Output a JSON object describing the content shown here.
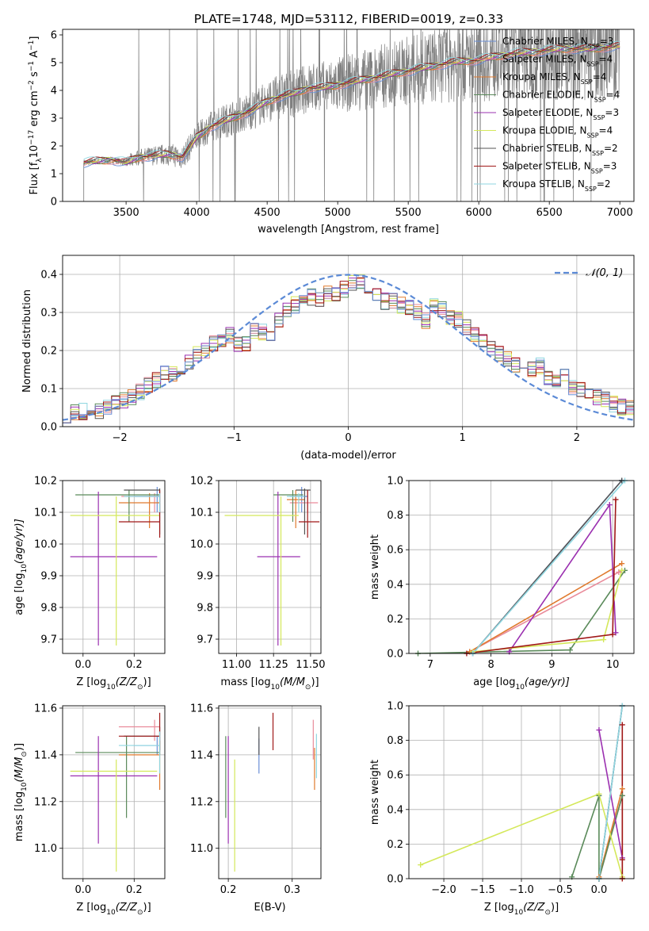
{
  "title": "PLATE=1748, MJD=53112, FIBERID=0019, z=0.33",
  "series_styles": [
    {
      "name": "Chabrier MILES",
      "sub": "SSP",
      "n": "3",
      "color": "#6a8fd6"
    },
    {
      "name": "Salpeter MILES",
      "sub": "SSP",
      "n": "4",
      "color": "#e98b9a"
    },
    {
      "name": "Kroupa MILES",
      "sub": "SSP",
      "n": "4",
      "color": "#e07a2e"
    },
    {
      "name": "Chabrier ELODIE",
      "sub": "SSP",
      "n": "4",
      "color": "#5a8a5a"
    },
    {
      "name": "Salpeter ELODIE",
      "sub": "SSP",
      "n": "3",
      "color": "#9b30b0"
    },
    {
      "name": "Kroupa ELODIE",
      "sub": "SSP",
      "n": "4",
      "color": "#d4e85a"
    },
    {
      "name": "Chabrier STELIB",
      "sub": "SSP",
      "n": "2",
      "color": "#555555"
    },
    {
      "name": "Salpeter STELIB",
      "sub": "SSP",
      "n": "3",
      "color": "#a01818"
    },
    {
      "name": "Kroupa STELIB",
      "sub": "SSP",
      "n": "2",
      "color": "#8fd6e0"
    }
  ],
  "chart_data": [
    {
      "id": "spectrum",
      "type": "line",
      "xlabel": "wavelength [Angstrom, rest frame]",
      "ylabel_main": "Flux [f",
      "ylabel_sub": "λ",
      "ylabel_rest": "10",
      "ylabel_exp": "−17",
      "ylabel_units": "erg cm",
      "xlim": [
        3050,
        7100
      ],
      "ylim": [
        0,
        6.2
      ],
      "xticks": [
        "3500",
        "4000",
        "4500",
        "5000",
        "5500",
        "6000",
        "6500",
        "7000"
      ],
      "xtick_values": [
        3500,
        4000,
        4500,
        5000,
        5500,
        6000,
        6500,
        7000
      ],
      "yticks": [
        "0",
        "1",
        "2",
        "3",
        "4",
        "5",
        "6"
      ],
      "ytick_values": [
        0,
        1,
        2,
        3,
        4,
        5,
        6
      ],
      "data_range": [
        3200,
        7000
      ],
      "continuum": {
        "x": [
          3200,
          3300,
          3400,
          3500,
          3600,
          3700,
          3800,
          3900,
          4000,
          4100,
          4200,
          4300,
          4400,
          4500,
          4600,
          4700,
          4800,
          4900,
          5000,
          5200,
          5400,
          5600,
          5800,
          6000,
          6200,
          6400,
          6600,
          6800,
          7000
        ],
        "y": [
          1.4,
          1.45,
          1.5,
          1.4,
          1.6,
          1.65,
          1.7,
          1.6,
          2.3,
          2.7,
          2.9,
          3.1,
          3.3,
          3.6,
          3.8,
          3.9,
          4.1,
          4.1,
          4.2,
          4.4,
          4.6,
          4.8,
          5.0,
          5.1,
          5.3,
          5.4,
          5.5,
          5.5,
          5.6
        ]
      },
      "legend_position": "upper right"
    },
    {
      "id": "residuals",
      "type": "step-histogram",
      "xlabel": "(data-model)/error",
      "ylabel": "Normed distribution",
      "xlim": [
        -2.5,
        2.5
      ],
      "ylim": [
        0,
        0.45
      ],
      "xticks": [
        "−2",
        "−1",
        "0",
        "1",
        "2"
      ],
      "xtick_values": [
        -2,
        -1,
        0,
        1,
        2
      ],
      "yticks": [
        "0.0",
        "0.1",
        "0.2",
        "0.3",
        "0.4"
      ],
      "ytick_values": [
        0,
        0.1,
        0.2,
        0.3,
        0.4
      ],
      "bin_width": 0.1,
      "base_heights": [
        0.03,
        0.04,
        0.04,
        0.05,
        0.04,
        0.05,
        0.06,
        0.07,
        0.08,
        0.09,
        0.11,
        0.12,
        0.14,
        0.14,
        0.15,
        0.17,
        0.19,
        0.2,
        0.22,
        0.23,
        0.24,
        0.22,
        0.22,
        0.25,
        0.25,
        0.24,
        0.28,
        0.31,
        0.32,
        0.33,
        0.34,
        0.33,
        0.35,
        0.35,
        0.36,
        0.38,
        0.38,
        0.36,
        0.35,
        0.33,
        0.33,
        0.32,
        0.31,
        0.3,
        0.28,
        0.32,
        0.31,
        0.29,
        0.28,
        0.26,
        0.24,
        0.22,
        0.21,
        0.19,
        0.18,
        0.16,
        0.17,
        0.15,
        0.16,
        0.13,
        0.12,
        0.13,
        0.1,
        0.1,
        0.09,
        0.08,
        0.07,
        0.06,
        0.05,
        0.05
      ],
      "hist_start": -2.5,
      "gaussian_label": "𝒩(0, 1)",
      "gaussian_color": "#5b8ad6"
    },
    {
      "id": "age-vs-Z",
      "type": "errorbar",
      "xlabel": "Z [log",
      "xlabel_sub": "10",
      "xlabel_rest": "(Z/Z",
      "ylabel": "age  [log",
      "ylabel_sub": "10",
      "ylabel_rest": "(age/yr)]",
      "xlim": [
        -0.08,
        0.32
      ],
      "ylim": [
        9.655,
        10.2
      ],
      "xticks": [
        "0.0",
        "0.2"
      ],
      "xtick_values": [
        0,
        0.2
      ],
      "yticks": [
        "9.7",
        "9.8",
        "9.9",
        "10.0",
        "10.1",
        "10.2"
      ],
      "ytick_values": [
        9.7,
        9.8,
        9.9,
        10.0,
        10.1,
        10.2
      ],
      "points": [
        {
          "series": 0,
          "x": 0.29,
          "xlo": 0.2,
          "xhi": 0.3,
          "y": 10.15,
          "ylo": 10.1,
          "yhi": 10.18
        },
        {
          "series": 1,
          "x": 0.28,
          "xlo": 0.15,
          "xhi": 0.3,
          "y": 10.15,
          "ylo": 10.1,
          "yhi": 10.16
        },
        {
          "series": 2,
          "x": 0.26,
          "xlo": 0.14,
          "xhi": 0.3,
          "y": 10.13,
          "ylo": 10.05,
          "yhi": 10.16
        },
        {
          "series": 3,
          "x": 0.18,
          "xlo": -0.03,
          "xhi": 0.3,
          "y": 10.155,
          "ylo": 10.07,
          "yhi": 10.17
        },
        {
          "series": 4,
          "x": 0.06,
          "xlo": -0.05,
          "xhi": 0.29,
          "y": 9.96,
          "ylo": 9.68,
          "yhi": 10.165
        },
        {
          "series": 5,
          "x": 0.13,
          "xlo": -0.05,
          "xhi": 0.3,
          "y": 10.09,
          "ylo": 9.68,
          "yhi": 10.15
        },
        {
          "series": 6,
          "x": 0.3,
          "xlo": 0.16,
          "xhi": 0.3,
          "y": 10.17,
          "ylo": 10.03,
          "yhi": 10.175
        },
        {
          "series": 7,
          "x": 0.3,
          "xlo": 0.14,
          "xhi": 0.3,
          "y": 10.07,
          "ylo": 10.02,
          "yhi": 10.17
        },
        {
          "series": 8,
          "x": 0.3,
          "xlo": 0.16,
          "xhi": 0.3,
          "y": 10.15,
          "ylo": 10.1,
          "yhi": 10.16
        }
      ]
    },
    {
      "id": "age-vs-mass",
      "type": "errorbar",
      "xlabel": "mass [log",
      "xlabel_sub": "10",
      "xlabel_rest": "(M/M",
      "xlim": [
        10.88,
        11.57
      ],
      "ylim": [
        9.655,
        10.2
      ],
      "xticks": [
        "11.00",
        "11.25",
        "11.50"
      ],
      "xtick_values": [
        11.0,
        11.25,
        11.5
      ],
      "yticks": [
        "9.7",
        "9.8",
        "9.9",
        "10.0",
        "10.1",
        "10.2"
      ],
      "ytick_values": [
        9.7,
        9.8,
        9.9,
        10.0,
        10.1,
        10.2
      ],
      "points": [
        {
          "series": 0,
          "x": 11.44,
          "xlo": 11.36,
          "xhi": 11.48,
          "y": 10.15,
          "ylo": 10.1,
          "yhi": 10.18
        },
        {
          "series": 1,
          "x": 11.48,
          "xlo": 11.36,
          "xhi": 11.55,
          "y": 10.13,
          "ylo": 10.1,
          "yhi": 10.17
        },
        {
          "series": 2,
          "x": 11.4,
          "xlo": 11.34,
          "xhi": 11.46,
          "y": 10.14,
          "ylo": 10.05,
          "yhi": 10.17
        },
        {
          "series": 3,
          "x": 11.38,
          "xlo": 11.25,
          "xhi": 11.45,
          "y": 10.155,
          "ylo": 10.07,
          "yhi": 10.17
        },
        {
          "series": 4,
          "x": 11.28,
          "xlo": 11.14,
          "xhi": 11.43,
          "y": 9.96,
          "ylo": 9.68,
          "yhi": 10.165
        },
        {
          "series": 5,
          "x": 11.3,
          "xlo": 10.92,
          "xhi": 11.42,
          "y": 10.09,
          "ylo": 9.68,
          "yhi": 10.15
        },
        {
          "series": 6,
          "x": 11.46,
          "xlo": 11.4,
          "xhi": 11.5,
          "y": 10.17,
          "ylo": 10.03,
          "yhi": 10.175
        },
        {
          "series": 7,
          "x": 11.48,
          "xlo": 11.42,
          "xhi": 11.56,
          "y": 10.07,
          "ylo": 10.02,
          "yhi": 10.17
        },
        {
          "series": 8,
          "x": 11.42,
          "xlo": 11.34,
          "xhi": 11.46,
          "y": 10.15,
          "ylo": 10.1,
          "yhi": 10.16
        }
      ]
    },
    {
      "id": "weight-vs-age",
      "type": "line",
      "xlabel": "age  [log",
      "xlabel_sub": "10",
      "xlabel_rest": "(age/yr)]",
      "ylabel": "mass weight",
      "xlim": [
        6.65,
        10.35
      ],
      "ylim": [
        0,
        1
      ],
      "xticks": [
        "7",
        "8",
        "9",
        "10"
      ],
      "xtick_values": [
        7,
        8,
        9,
        10
      ],
      "yticks": [
        "0.0",
        "0.2",
        "0.4",
        "0.6",
        "0.8",
        "1.0"
      ],
      "ytick_values": [
        0,
        0.2,
        0.4,
        0.6,
        0.8,
        1.0
      ],
      "series": [
        {
          "series": 0,
          "x": [
            7.7,
            10.15
          ],
          "y": [
            0.0,
            1.0
          ]
        },
        {
          "series": 1,
          "x": [
            7.65,
            10.1,
            10.15
          ],
          "y": [
            0.01,
            0.47,
            0.48
          ]
        },
        {
          "series": 2,
          "x": [
            7.65,
            10.15
          ],
          "y": [
            0.01,
            0.52
          ]
        },
        {
          "series": 3,
          "x": [
            6.8,
            9.3,
            10.2
          ],
          "y": [
            0.0,
            0.02,
            0.48
          ]
        },
        {
          "series": 4,
          "x": [
            8.3,
            9.95,
            10.05
          ],
          "y": [
            0.01,
            0.86,
            0.12
          ]
        },
        {
          "series": 5,
          "x": [
            7.7,
            9.85,
            10.15
          ],
          "y": [
            0.01,
            0.08,
            0.48
          ]
        },
        {
          "series": 6,
          "x": [
            7.7,
            10.15
          ],
          "y": [
            0.0,
            1.0
          ]
        },
        {
          "series": 7,
          "x": [
            7.6,
            10.0,
            10.05
          ],
          "y": [
            0.0,
            0.11,
            0.89
          ]
        },
        {
          "series": 8,
          "x": [
            7.7,
            10.2
          ],
          "y": [
            0.0,
            1.0
          ]
        }
      ]
    },
    {
      "id": "mass-vs-Z",
      "type": "errorbar",
      "xlabel": "Z [log",
      "xlabel_sub": "10",
      "xlabel_rest": "(Z/Z",
      "ylabel": "mass [log",
      "ylabel_sub": "10",
      "ylabel_rest": "(M/M",
      "xlim": [
        -0.08,
        0.32
      ],
      "ylim": [
        10.87,
        11.61
      ],
      "xticks": [
        "0.0",
        "0.2"
      ],
      "xtick_values": [
        0,
        0.2
      ],
      "yticks": [
        "11.0",
        "11.2",
        "11.4",
        "11.6"
      ],
      "ytick_values": [
        11.0,
        11.2,
        11.4,
        11.6
      ],
      "points": [
        {
          "series": 0,
          "x": 0.29,
          "xlo": 0.2,
          "xhi": 0.3,
          "y": 11.44,
          "ylo": 11.4,
          "yhi": 11.48
        },
        {
          "series": 1,
          "x": 0.28,
          "xlo": 0.14,
          "xhi": 0.3,
          "y": 11.52,
          "ylo": 11.46,
          "yhi": 11.55
        },
        {
          "series": 2,
          "x": 0.3,
          "xlo": 0.14,
          "xhi": 0.3,
          "y": 11.4,
          "ylo": 11.25,
          "yhi": 11.46
        },
        {
          "series": 3,
          "x": 0.17,
          "xlo": -0.03,
          "xhi": 0.3,
          "y": 11.41,
          "ylo": 11.13,
          "yhi": 11.48
        },
        {
          "series": 4,
          "x": 0.06,
          "xlo": -0.05,
          "xhi": 0.29,
          "y": 11.31,
          "ylo": 11.02,
          "yhi": 11.48
        },
        {
          "series": 5,
          "x": 0.13,
          "xlo": -0.05,
          "xhi": 0.29,
          "y": 11.33,
          "ylo": 10.9,
          "yhi": 11.38
        },
        {
          "series": 6,
          "x": 0.3,
          "xlo": 0.16,
          "xhi": 0.3,
          "y": 11.48,
          "ylo": 11.4,
          "yhi": 11.52
        },
        {
          "series": 7,
          "x": 0.3,
          "xlo": 0.14,
          "xhi": 0.3,
          "y": 11.48,
          "ylo": 11.42,
          "yhi": 11.58
        },
        {
          "series": 8,
          "x": 0.3,
          "xlo": 0.14,
          "xhi": 0.3,
          "y": 11.44,
          "ylo": 11.32,
          "yhi": 11.5
        }
      ]
    },
    {
      "id": "mass-vs-EBV",
      "type": "errorbar",
      "xlabel": "E(B-V)",
      "xlim": [
        0.185,
        0.345
      ],
      "ylim": [
        10.87,
        11.61
      ],
      "xticks": [
        "0.2",
        "0.3"
      ],
      "xtick_values": [
        0.2,
        0.3
      ],
      "yticks": [
        "11.0",
        "11.2",
        "11.4",
        "11.6"
      ],
      "ytick_values": [
        11.0,
        11.2,
        11.4,
        11.6
      ],
      "points": [
        {
          "series": 0,
          "x": 0.248,
          "ylo": 11.32,
          "yhi": 11.47
        },
        {
          "series": 1,
          "x": 0.333,
          "ylo": 11.38,
          "yhi": 11.55
        },
        {
          "series": 2,
          "x": 0.335,
          "ylo": 11.25,
          "yhi": 11.43
        },
        {
          "series": 3,
          "x": 0.196,
          "ylo": 11.13,
          "yhi": 11.48
        },
        {
          "series": 4,
          "x": 0.2,
          "ylo": 11.02,
          "yhi": 11.48
        },
        {
          "series": 5,
          "x": 0.21,
          "ylo": 10.9,
          "yhi": 11.38
        },
        {
          "series": 6,
          "x": 0.248,
          "ylo": 11.4,
          "yhi": 11.52
        },
        {
          "series": 7,
          "x": 0.27,
          "ylo": 11.42,
          "yhi": 11.58
        },
        {
          "series": 8,
          "x": 0.338,
          "ylo": 11.3,
          "yhi": 11.49
        }
      ]
    },
    {
      "id": "weight-vs-Z",
      "type": "line",
      "xlabel": "Z [log",
      "xlabel_sub": "10",
      "xlabel_rest": "(Z/Z",
      "ylabel": "mass weight",
      "xlim": [
        -2.45,
        0.45
      ],
      "ylim": [
        0,
        1
      ],
      "xticks": [
        "−2.0",
        "−1.5",
        "−1.0",
        "−0.5",
        "0.0"
      ],
      "xtick_values": [
        -2.0,
        -1.5,
        -1.0,
        -0.5,
        0.0
      ],
      "yticks": [
        "0.0",
        "0.2",
        "0.4",
        "0.6",
        "0.8",
        "1.0"
      ],
      "ytick_values": [
        0,
        0.2,
        0.4,
        0.6,
        0.8,
        1.0
      ],
      "series": [
        {
          "series": 0,
          "x": [
            0.0,
            0.3
          ],
          "y": [
            0.0,
            1.0
          ]
        },
        {
          "series": 1,
          "x": [
            0.0,
            0.3
          ],
          "y": [
            0.0,
            0.48
          ]
        },
        {
          "series": 2,
          "x": [
            0.0,
            0.3,
            0.3
          ],
          "y": [
            0.01,
            0.52,
            0.0
          ]
        },
        {
          "series": 3,
          "x": [
            -0.35,
            0.0,
            0.0,
            0.3
          ],
          "y": [
            0.01,
            0.48,
            0.0,
            0.48
          ]
        },
        {
          "series": 4,
          "x": [
            0.0,
            0.3
          ],
          "y": [
            0.86,
            0.12
          ]
        },
        {
          "series": 5,
          "x": [
            -2.3,
            0.0,
            0.3
          ],
          "y": [
            0.08,
            0.49,
            0.01
          ]
        },
        {
          "series": 6,
          "x": [
            0.0,
            0.3
          ],
          "y": [
            0.0,
            1.0
          ]
        },
        {
          "series": 7,
          "x": [
            0.3,
            0.3,
            0.3
          ],
          "y": [
            0.11,
            0.89,
            0.0
          ]
        },
        {
          "series": 8,
          "x": [
            0.0,
            0.3
          ],
          "y": [
            0.0,
            1.0
          ]
        }
      ]
    }
  ]
}
